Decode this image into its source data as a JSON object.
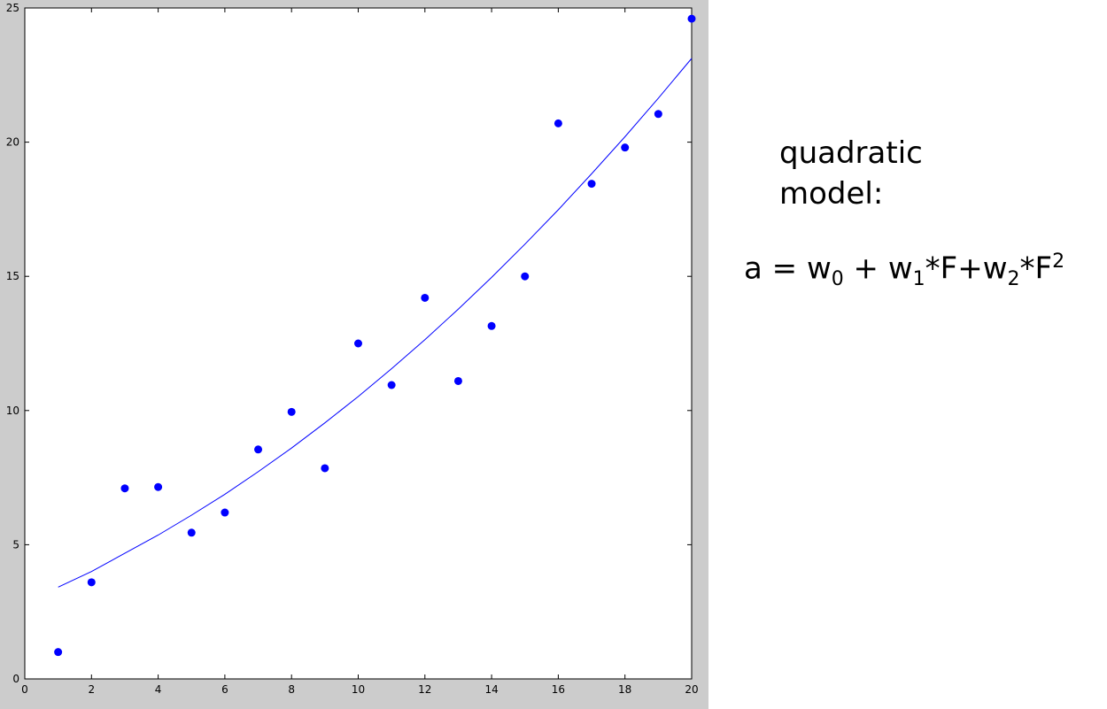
{
  "chart_data": {
    "type": "scatter",
    "title": "",
    "xlabel": "",
    "ylabel": "",
    "xlim": [
      0,
      20
    ],
    "ylim": [
      0,
      25
    ],
    "x_ticks": [
      0,
      2,
      4,
      6,
      8,
      10,
      12,
      14,
      16,
      18,
      20
    ],
    "y_ticks": [
      0,
      5,
      10,
      15,
      20,
      25
    ],
    "grid": false,
    "legend": "none",
    "series": [
      {
        "kind": "points",
        "color": "#0000ff",
        "x": [
          1,
          2,
          3,
          4,
          5,
          6,
          7,
          8,
          9,
          10,
          11,
          12,
          13,
          14,
          15,
          16,
          17,
          18,
          19,
          20
        ],
        "y": [
          1.0,
          3.6,
          7.1,
          7.15,
          5.45,
          6.2,
          8.55,
          9.95,
          7.85,
          12.5,
          10.95,
          14.2,
          11.1,
          13.15,
          15.0,
          20.7,
          18.45,
          19.8,
          21.05,
          24.6
        ]
      },
      {
        "kind": "fit",
        "color": "#0000ff",
        "x": [
          1,
          2,
          3,
          4,
          5,
          6,
          7,
          8,
          9,
          10,
          11,
          12,
          13,
          14,
          15,
          16,
          17,
          18,
          19,
          20
        ],
        "y": [
          3.42,
          4.0,
          4.68,
          5.36,
          6.1,
          6.88,
          7.72,
          8.6,
          9.54,
          10.52,
          11.56,
          12.64,
          13.78,
          14.96,
          16.2,
          17.48,
          18.82,
          20.2,
          21.64,
          23.12
        ]
      }
    ]
  },
  "annotation": {
    "title": "quadratic model:",
    "equation": {
      "lhs": "a = w",
      "sub0": "0",
      "part2": " + w",
      "sub1": "1",
      "part3": "*F+w",
      "sub2": "2",
      "part4": "*F",
      "sup2": "2"
    }
  }
}
